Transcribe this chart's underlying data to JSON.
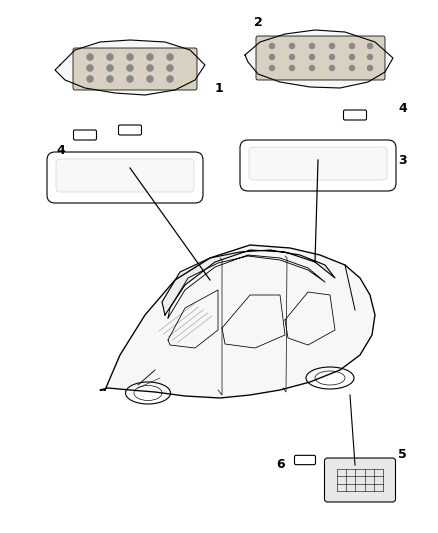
{
  "title": "",
  "background_color": "#ffffff",
  "fig_width": 4.38,
  "fig_height": 5.33,
  "dpi": 100,
  "components": {
    "part1_label": "1",
    "part2_label": "2",
    "part3_label": "3",
    "part4_label": "4",
    "part5_label": "5",
    "part6_label": "6"
  },
  "line_color": "#000000",
  "line_width": 0.8,
  "label_fontsize": 9,
  "label_color": "#000000"
}
